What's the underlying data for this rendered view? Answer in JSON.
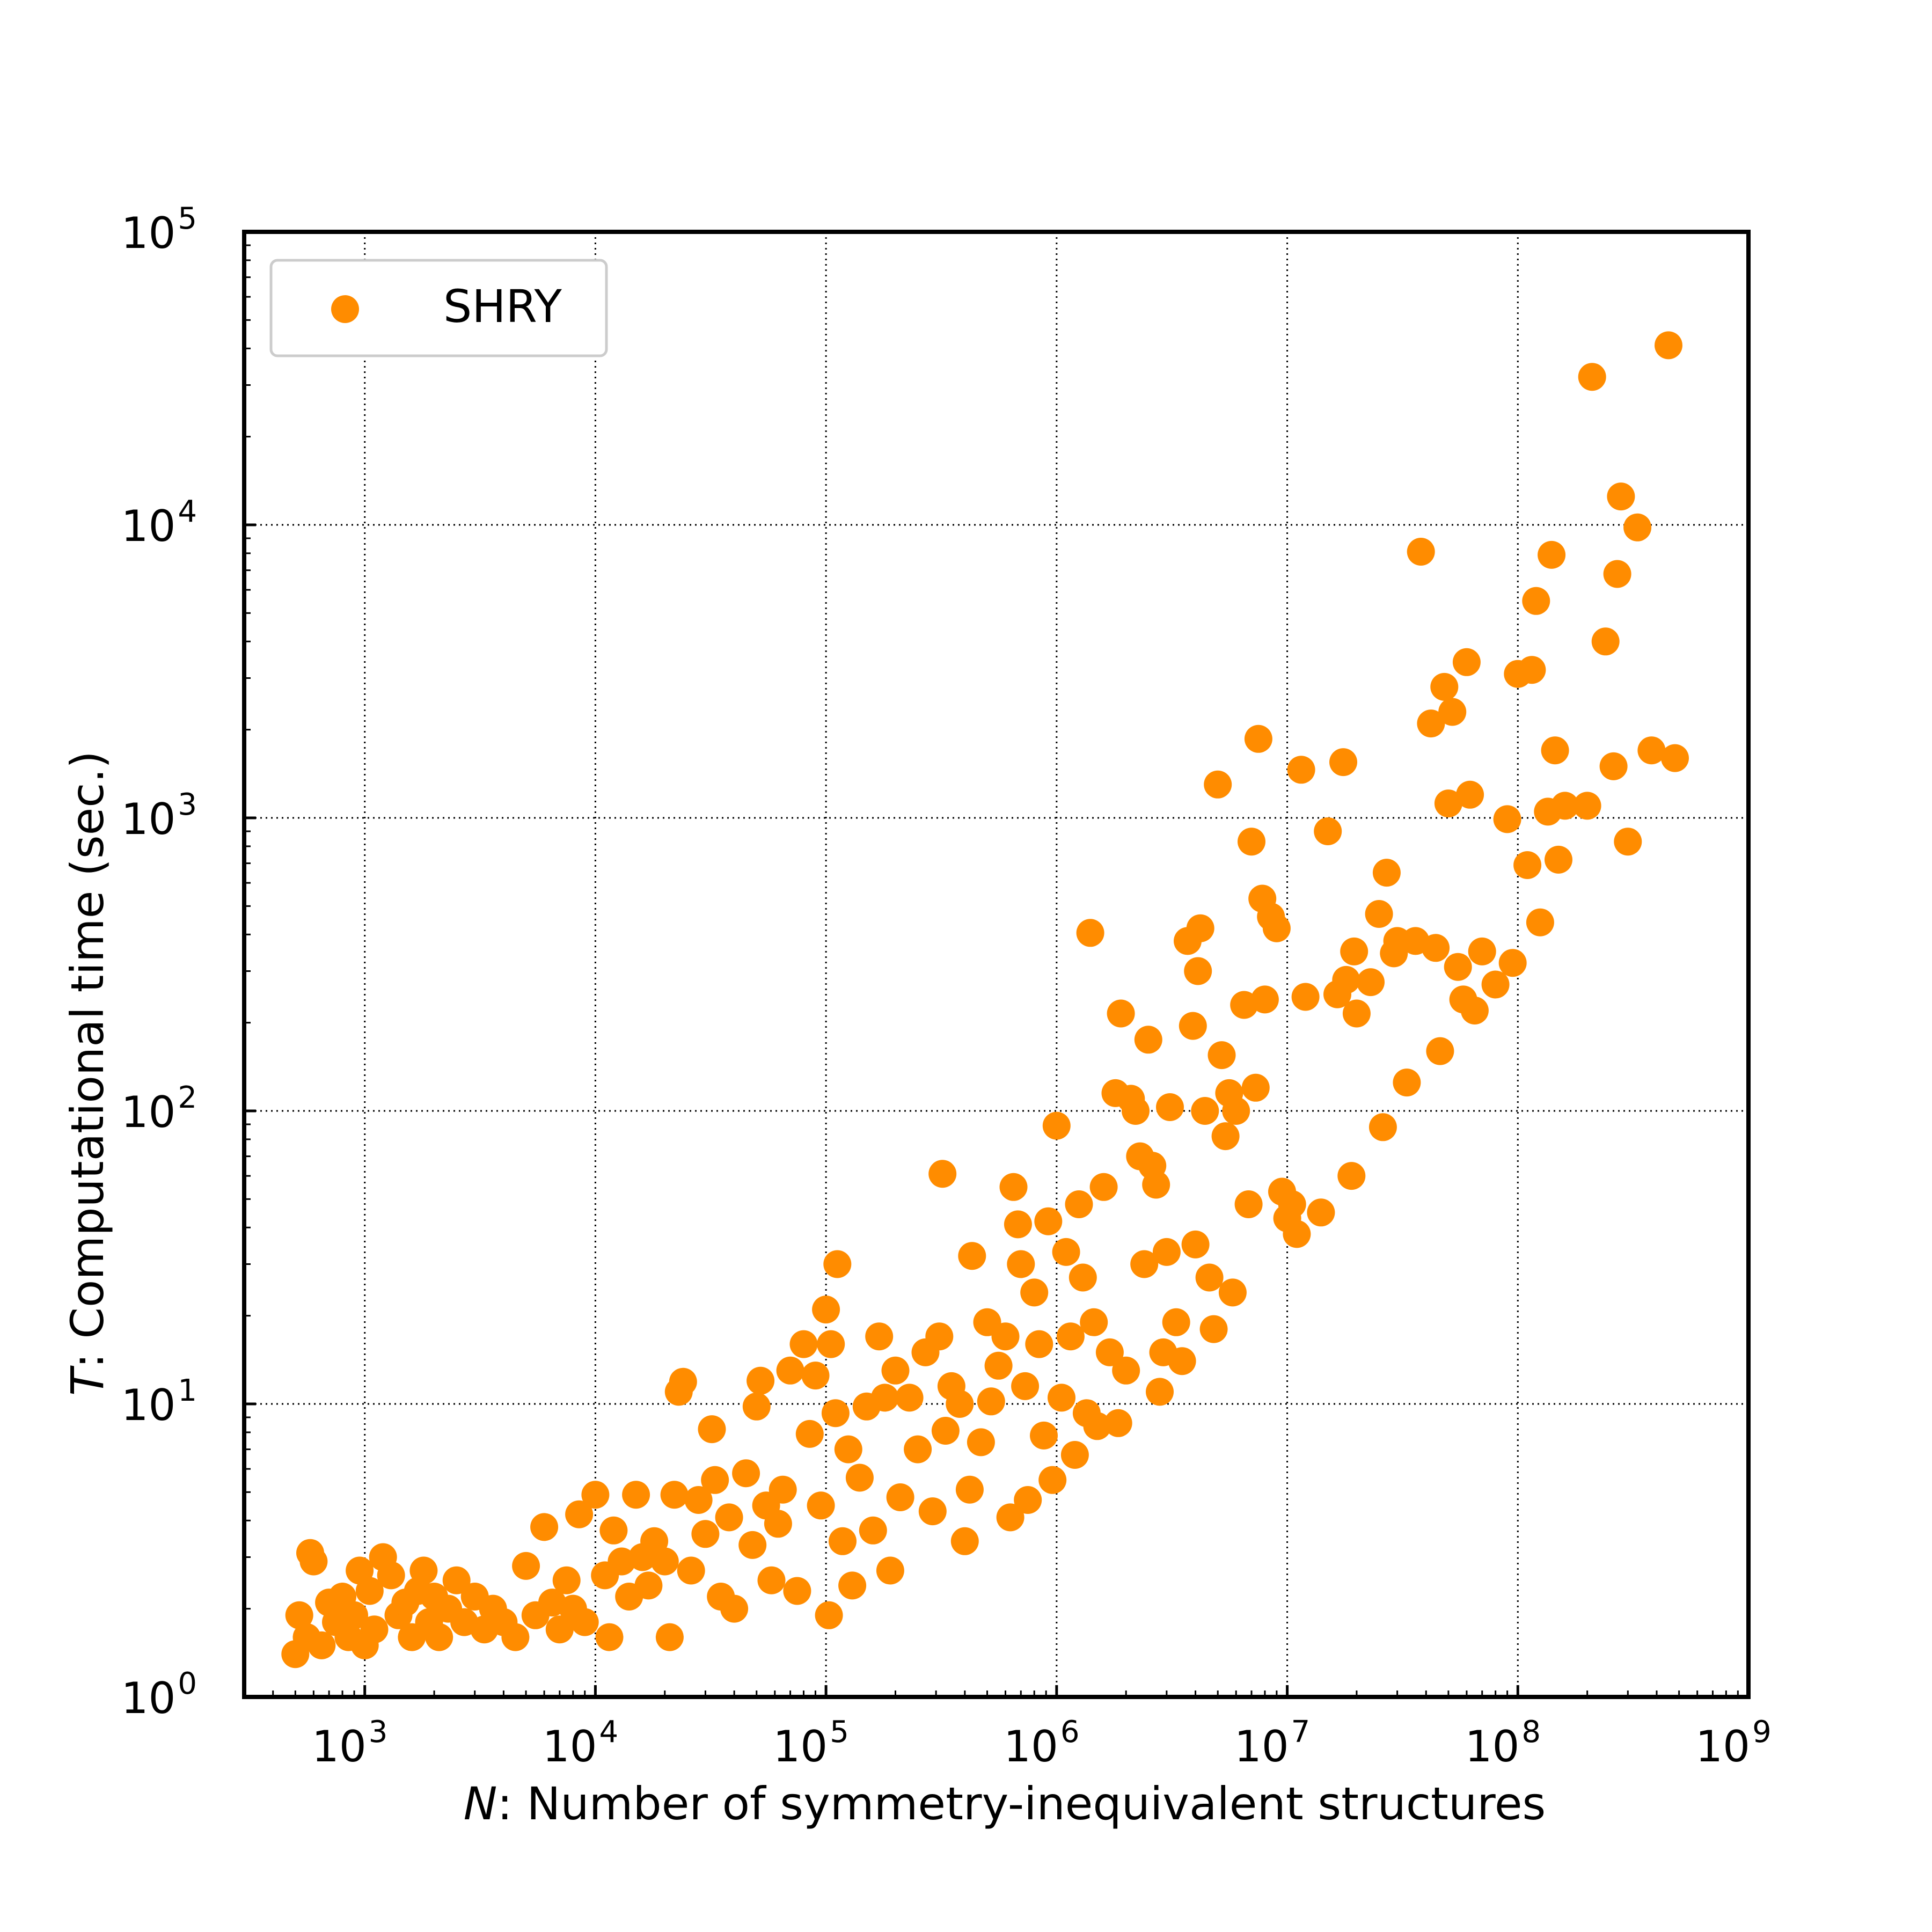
{
  "chart_data": {
    "type": "scatter",
    "xscale": "log",
    "yscale": "log",
    "xlim": [
      300,
      1000000000
    ],
    "ylim": [
      1,
      100000
    ],
    "grid": true,
    "legend_position": "top-left",
    "xlabel": {
      "var": "N",
      "text": ": Number of symmetry-inequivalent structures"
    },
    "ylabel": {
      "var": "T",
      "text": ": Computational time (sec.)"
    },
    "x_ticks": [
      {
        "value": 1000,
        "base": "10",
        "exp": "3"
      },
      {
        "value": 10000,
        "base": "10",
        "exp": "4"
      },
      {
        "value": 100000,
        "base": "10",
        "exp": "5"
      },
      {
        "value": 1000000,
        "base": "10",
        "exp": "6"
      },
      {
        "value": 10000000,
        "base": "10",
        "exp": "7"
      },
      {
        "value": 100000000,
        "base": "10",
        "exp": "8"
      },
      {
        "value": 1000000000,
        "base": "10",
        "exp": "9"
      }
    ],
    "y_ticks": [
      {
        "value": 1,
        "base": "10",
        "exp": "0"
      },
      {
        "value": 10,
        "base": "10",
        "exp": "1"
      },
      {
        "value": 100,
        "base": "10",
        "exp": "2"
      },
      {
        "value": 1000,
        "base": "10",
        "exp": "3"
      },
      {
        "value": 10000,
        "base": "10",
        "exp": "4"
      },
      {
        "value": 100000,
        "base": "10",
        "exp": "5"
      }
    ],
    "series": [
      {
        "name": "SHRY",
        "color": "#ff8c00",
        "points": [
          [
            500,
            1.4
          ],
          [
            520,
            1.9
          ],
          [
            560,
            1.6
          ],
          [
            580,
            3.1
          ],
          [
            600,
            2.9
          ],
          [
            650,
            1.5
          ],
          [
            700,
            2.1
          ],
          [
            750,
            1.8
          ],
          [
            800,
            2.2
          ],
          [
            850,
            1.6
          ],
          [
            900,
            1.9
          ],
          [
            950,
            2.7
          ],
          [
            1000,
            1.5
          ],
          [
            1050,
            2.3
          ],
          [
            1100,
            1.7
          ],
          [
            1200,
            3.0
          ],
          [
            1300,
            2.6
          ],
          [
            1400,
            1.9
          ],
          [
            1500,
            2.1
          ],
          [
            1600,
            1.6
          ],
          [
            1700,
            2.3
          ],
          [
            1800,
            2.7
          ],
          [
            1900,
            1.8
          ],
          [
            2000,
            2.2
          ],
          [
            2100,
            1.6
          ],
          [
            2300,
            2.0
          ],
          [
            2500,
            2.5
          ],
          [
            2700,
            1.8
          ],
          [
            3000,
            2.2
          ],
          [
            3300,
            1.7
          ],
          [
            3600,
            2.0
          ],
          [
            4000,
            1.8
          ],
          [
            4500,
            1.6
          ],
          [
            5000,
            2.8
          ],
          [
            5500,
            1.9
          ],
          [
            6000,
            3.8
          ],
          [
            6500,
            2.1
          ],
          [
            7000,
            1.7
          ],
          [
            7500,
            2.5
          ],
          [
            8000,
            2.0
          ],
          [
            8500,
            4.2
          ],
          [
            9000,
            1.8
          ],
          [
            10000,
            4.9
          ],
          [
            11000,
            2.6
          ],
          [
            11500,
            1.6
          ],
          [
            12000,
            3.7
          ],
          [
            13000,
            2.9
          ],
          [
            14000,
            2.2
          ],
          [
            15000,
            4.9
          ],
          [
            16000,
            3.0
          ],
          [
            17000,
            2.4
          ],
          [
            18000,
            3.4
          ],
          [
            20000,
            2.9
          ],
          [
            21000,
            1.6
          ],
          [
            22000,
            4.9
          ],
          [
            23000,
            11.0
          ],
          [
            24000,
            11.9
          ],
          [
            26000,
            2.7
          ],
          [
            28000,
            4.7
          ],
          [
            30000,
            3.6
          ],
          [
            32000,
            8.2
          ],
          [
            33000,
            5.5
          ],
          [
            35000,
            2.2
          ],
          [
            38000,
            4.1
          ],
          [
            40000,
            2.0
          ],
          [
            45000,
            5.8
          ],
          [
            48000,
            3.3
          ],
          [
            50000,
            9.8
          ],
          [
            52000,
            12.0
          ],
          [
            55000,
            4.5
          ],
          [
            58000,
            2.5
          ],
          [
            62000,
            3.9
          ],
          [
            65000,
            5.1
          ],
          [
            70000,
            13.0
          ],
          [
            75000,
            2.3
          ],
          [
            80000,
            16.0
          ],
          [
            85000,
            7.9
          ],
          [
            90000,
            12.5
          ],
          [
            95000,
            4.5
          ],
          [
            100000,
            21.0
          ],
          [
            103000,
            1.9
          ],
          [
            105000,
            16.0
          ],
          [
            110000,
            9.3
          ],
          [
            112000,
            30.0
          ],
          [
            118000,
            3.4
          ],
          [
            125000,
            7.0
          ],
          [
            130000,
            2.4
          ],
          [
            140000,
            5.6
          ],
          [
            150000,
            9.8
          ],
          [
            160000,
            3.7
          ],
          [
            170000,
            17.0
          ],
          [
            180000,
            10.5
          ],
          [
            190000,
            2.7
          ],
          [
            200000,
            13.0
          ],
          [
            210000,
            4.8
          ],
          [
            230000,
            10.5
          ],
          [
            250000,
            7.0
          ],
          [
            270000,
            15.0
          ],
          [
            290000,
            4.3
          ],
          [
            310000,
            17.0
          ],
          [
            320000,
            61.0
          ],
          [
            330000,
            8.1
          ],
          [
            350000,
            11.5
          ],
          [
            380000,
            10.0
          ],
          [
            400000,
            3.4
          ],
          [
            420000,
            5.1
          ],
          [
            430000,
            32.0
          ],
          [
            470000,
            7.4
          ],
          [
            500000,
            19.0
          ],
          [
            520000,
            10.2
          ],
          [
            560000,
            13.5
          ],
          [
            600000,
            17.0
          ],
          [
            630000,
            4.1
          ],
          [
            650000,
            55.0
          ],
          [
            680000,
            41.0
          ],
          [
            700000,
            30.0
          ],
          [
            730000,
            11.5
          ],
          [
            750000,
            4.7
          ],
          [
            800000,
            24.0
          ],
          [
            840000,
            16.0
          ],
          [
            880000,
            7.8
          ],
          [
            920000,
            42.0
          ],
          [
            960000,
            5.5
          ],
          [
            1000000,
            89.0
          ],
          [
            1050000,
            10.5
          ],
          [
            1100000,
            33.0
          ],
          [
            1150000,
            17.0
          ],
          [
            1200000,
            6.7
          ],
          [
            1250000,
            48.0
          ],
          [
            1300000,
            27.0
          ],
          [
            1350000,
            9.3
          ],
          [
            1400000,
            405.0
          ],
          [
            1450000,
            19.0
          ],
          [
            1500000,
            8.4
          ],
          [
            1600000,
            55.0
          ],
          [
            1700000,
            15.0
          ],
          [
            1800000,
            115.0
          ],
          [
            1850000,
            8.6
          ],
          [
            1900000,
            215.0
          ],
          [
            2000000,
            13.0
          ],
          [
            2100000,
            110.0
          ],
          [
            2200000,
            100.0
          ],
          [
            2300000,
            70.0
          ],
          [
            2400000,
            30.0
          ],
          [
            2500000,
            175.0
          ],
          [
            2600000,
            65.0
          ],
          [
            2700000,
            56.0
          ],
          [
            2800000,
            11.0
          ],
          [
            2900000,
            15.0
          ],
          [
            3000000,
            33.0
          ],
          [
            3100000,
            103.0
          ],
          [
            3300000,
            19.0
          ],
          [
            3500000,
            14.0
          ],
          [
            3700000,
            380.0
          ],
          [
            3900000,
            195.0
          ],
          [
            4000000,
            35.0
          ],
          [
            4100000,
            300.0
          ],
          [
            4200000,
            420.0
          ],
          [
            4400000,
            100.0
          ],
          [
            4600000,
            27.0
          ],
          [
            4800000,
            18.0
          ],
          [
            5000000,
            1300.0
          ],
          [
            5200000,
            155.0
          ],
          [
            5400000,
            82.0
          ],
          [
            5600000,
            115.0
          ],
          [
            5800000,
            24.0
          ],
          [
            6000000,
            100.0
          ],
          [
            6500000,
            230.0
          ],
          [
            6800000,
            48.0
          ],
          [
            7000000,
            830.0
          ],
          [
            7300000,
            120.0
          ],
          [
            7500000,
            1860.0
          ],
          [
            7800000,
            530.0
          ],
          [
            8000000,
            240.0
          ],
          [
            8500000,
            460.0
          ],
          [
            9000000,
            420.0
          ],
          [
            9500000,
            53.0
          ],
          [
            10000000,
            43.0
          ],
          [
            10500000,
            48.0
          ],
          [
            11000000,
            38.0
          ],
          [
            11500000,
            1460.0
          ],
          [
            12000000,
            245.0
          ],
          [
            14000000,
            45.0
          ],
          [
            15000000,
            900.0
          ],
          [
            16500000,
            250.0
          ],
          [
            17500000,
            1550.0
          ],
          [
            18000000,
            280.0
          ],
          [
            19000000,
            60.0
          ],
          [
            19500000,
            350.0
          ],
          [
            20000000,
            215.0
          ],
          [
            23000000,
            275.0
          ],
          [
            25000000,
            470.0
          ],
          [
            26000000,
            88.0
          ],
          [
            27000000,
            650.0
          ],
          [
            29000000,
            345.0
          ],
          [
            30000000,
            380.0
          ],
          [
            33000000,
            125.0
          ],
          [
            36000000,
            380.0
          ],
          [
            38000000,
            8100.0
          ],
          [
            42000000,
            2100.0
          ],
          [
            44000000,
            360.0
          ],
          [
            46000000,
            160.0
          ],
          [
            48000000,
            2800.0
          ],
          [
            50000000,
            1120.0
          ],
          [
            52000000,
            2300.0
          ],
          [
            55000000,
            310.0
          ],
          [
            58000000,
            240.0
          ],
          [
            60000000,
            3400.0
          ],
          [
            62000000,
            1200.0
          ],
          [
            65000000,
            220.0
          ],
          [
            70000000,
            350.0
          ],
          [
            80000000,
            270.0
          ],
          [
            90000000,
            990.0
          ],
          [
            95000000,
            320.0
          ],
          [
            100000000,
            3100.0
          ],
          [
            110000000,
            690.0
          ],
          [
            115000000,
            3200.0
          ],
          [
            120000000,
            5500.0
          ],
          [
            125000000,
            440.0
          ],
          [
            135000000,
            1050.0
          ],
          [
            140000000,
            7900.0
          ],
          [
            145000000,
            1700.0
          ],
          [
            150000000,
            720.0
          ],
          [
            160000000,
            1100.0
          ],
          [
            200000000,
            1100.0
          ],
          [
            210000000,
            32000.0
          ],
          [
            240000000,
            4000.0
          ],
          [
            260000000,
            1500.0
          ],
          [
            270000000,
            6800.0
          ],
          [
            280000000,
            12500.0
          ],
          [
            300000000,
            830.0
          ],
          [
            330000000,
            9800.0
          ],
          [
            380000000,
            1700.0
          ],
          [
            450000000,
            41000.0
          ],
          [
            480000000,
            1600.0
          ]
        ]
      }
    ]
  }
}
